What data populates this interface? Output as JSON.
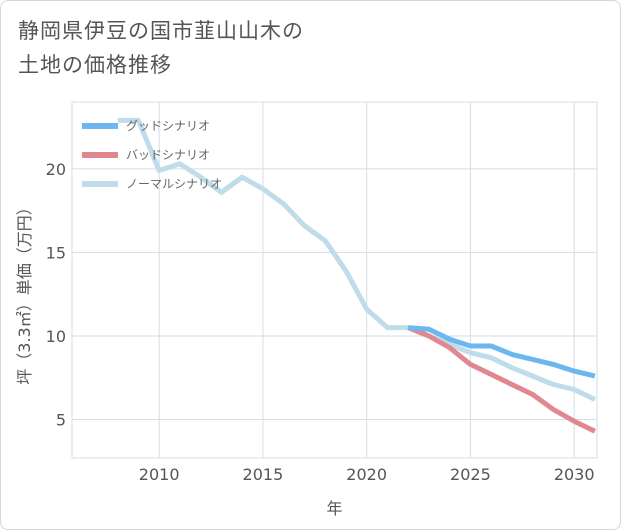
{
  "title_lines": [
    "静岡県伊豆の国市韮山山木の",
    "土地の価格推移"
  ],
  "colors": {
    "good": "#6cb7ee",
    "bad": "#e0888f",
    "normal": "#bfdcea",
    "grid": "#d3dde6",
    "text": "#555555"
  },
  "chart_data": {
    "type": "line",
    "title": "静岡県伊豆の国市韮山山木の土地の価格推移",
    "xlabel": "年",
    "ylabel": "坪（3.3㎡）単価（万円）",
    "xlim": [
      2005.8,
      2031.1
    ],
    "ylim": [
      2.7,
      24.0
    ],
    "xticks": [
      2010,
      2015,
      2020,
      2025,
      2030
    ],
    "yticks": [
      5,
      10,
      15,
      20
    ],
    "legend_position": "top-left",
    "series": [
      {
        "name": "グッドシナリオ",
        "key": "good",
        "x": [
          2022,
          2023,
          2024,
          2025,
          2026,
          2027,
          2028,
          2029,
          2030,
          2031
        ],
        "y": [
          10.5,
          10.4,
          9.8,
          9.4,
          9.4,
          8.9,
          8.6,
          8.3,
          7.9,
          7.6
        ]
      },
      {
        "name": "バッドシナリオ",
        "key": "bad",
        "x": [
          2022,
          2023,
          2024,
          2025,
          2026,
          2027,
          2028,
          2029,
          2030,
          2031
        ],
        "y": [
          10.5,
          10.0,
          9.3,
          8.3,
          7.7,
          7.1,
          6.5,
          5.6,
          4.9,
          4.3
        ]
      },
      {
        "name": "ノーマルシナリオ",
        "key": "normal",
        "x": [
          2008,
          2009,
          2010,
          2011,
          2012,
          2013,
          2014,
          2015,
          2016,
          2017,
          2018,
          2019,
          2020,
          2021,
          2022,
          2023,
          2024,
          2025,
          2026,
          2027,
          2028,
          2029,
          2030,
          2031
        ],
        "y": [
          22.9,
          22.9,
          19.9,
          20.3,
          19.5,
          18.6,
          19.5,
          18.8,
          17.9,
          16.6,
          15.7,
          13.9,
          11.6,
          10.5,
          10.5,
          10.0,
          9.5,
          9.0,
          8.7,
          8.1,
          7.6,
          7.1,
          6.8,
          6.2
        ]
      }
    ]
  }
}
